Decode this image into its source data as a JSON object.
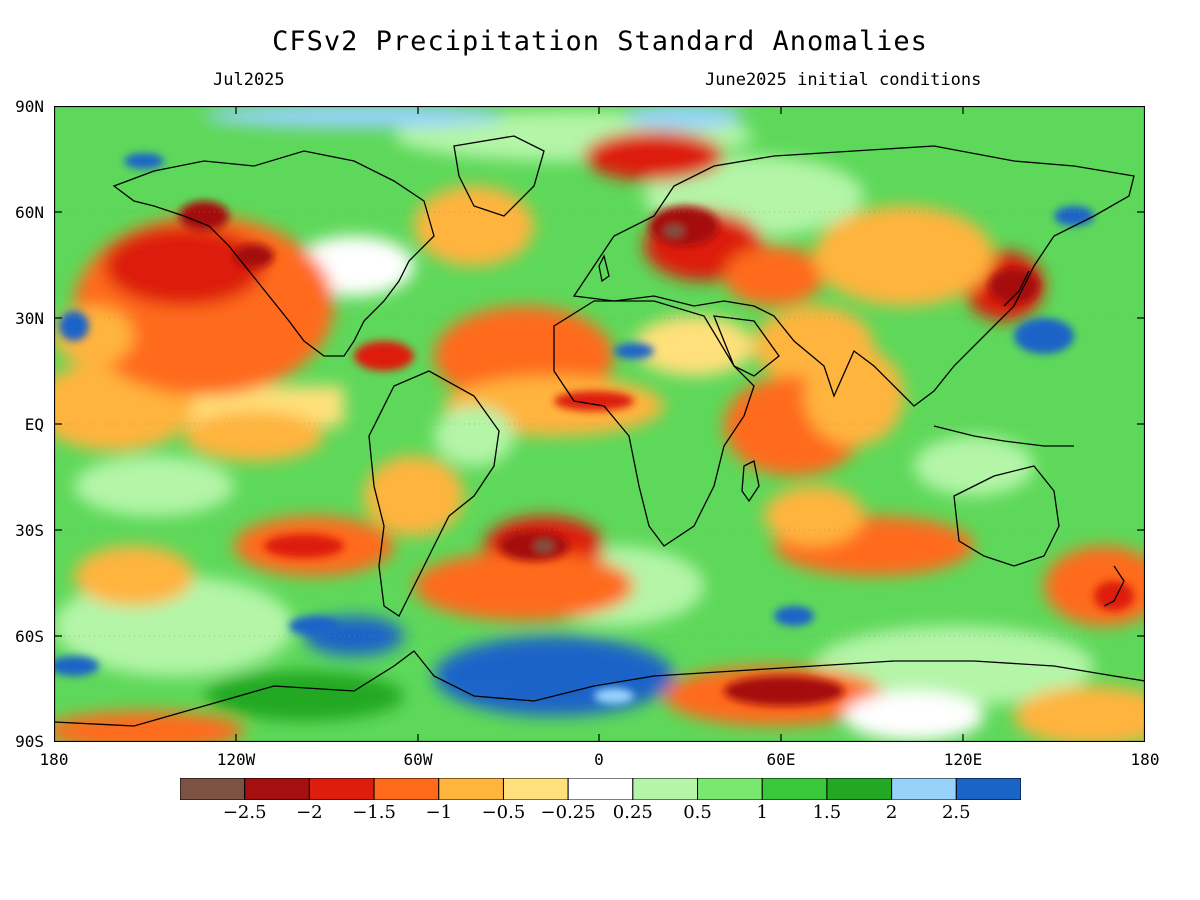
{
  "title": "CFSv2 Precipitation Standard Anomalies",
  "subtitle_left": "Jul2025",
  "subtitle_right": "June2025 initial conditions",
  "lat_labels": [
    "90N",
    "60N",
    "30N",
    "EQ",
    "30S",
    "60S",
    "90S"
  ],
  "lon_labels": [
    "180",
    "120W",
    "60W",
    "0",
    "60E",
    "120E",
    "180"
  ],
  "colorbar": {
    "colors": [
      "#7b5243",
      "#a50f0f",
      "#dd1e0e",
      "#ff6a1a",
      "#ffb43c",
      "#ffe07a",
      "#ffffff",
      "#b4f5a8",
      "#78e86e",
      "#39c83a",
      "#22a822",
      "#96d2fa",
      "#1a64c8"
    ],
    "labels": [
      "-2.5",
      "-2",
      "-1.5",
      "-1",
      "-0.5",
      "-0.25",
      "0.25",
      "0.5",
      "1",
      "1.5",
      "2",
      "2.5"
    ]
  }
}
